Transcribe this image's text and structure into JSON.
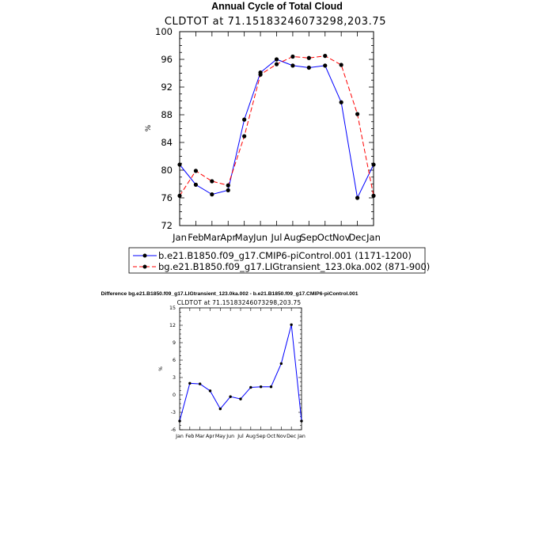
{
  "chart_data": [
    {
      "type": "line",
      "title": "Annual Cycle of Total Cloud",
      "subtitle": "CLDTOT at 71.15183246073298,203.75",
      "ylabel": "%",
      "categories": [
        "Jan",
        "Feb",
        "Mar",
        "Apr",
        "May",
        "Jun",
        "Jul",
        "Aug",
        "Sep",
        "Oct",
        "Nov",
        "Dec",
        "Jan"
      ],
      "ylim": [
        72,
        100
      ],
      "yticks": [
        72,
        76,
        80,
        84,
        88,
        92,
        96,
        100
      ],
      "ytick_labels": [
        "72",
        "76",
        "80",
        "84",
        "88",
        "92",
        "96",
        "100"
      ],
      "series": [
        {
          "name": "b.e21.B1850.f09_g17.CMIP6-piControl.001 (1171-1200)",
          "color": "#0000ff",
          "dash": "solid",
          "values": [
            80.8,
            77.9,
            76.5,
            77.1,
            87.3,
            94.1,
            96.0,
            95.1,
            94.8,
            95.1,
            89.8,
            76.0,
            80.8
          ]
        },
        {
          "name": "bg.e21.B1850.f09_g17.LIGtransient_123.0ka.002 (871-900)",
          "color": "#ff0000",
          "dash": "dashed",
          "values": [
            76.3,
            79.9,
            78.4,
            77.8,
            84.9,
            93.8,
            95.3,
            96.4,
            96.2,
            96.5,
            95.2,
            88.1,
            76.3
          ]
        }
      ]
    },
    {
      "type": "line",
      "title": "Difference bg.e21.B1850.f09_g17.LIGtransient_123.0ka.002 - b.e21.B1850.f09_g17.CMIP6-piControl.001",
      "subtitle": "CLDTOT at 71.15183246073298,203.75",
      "ylabel": "%",
      "categories": [
        "Jan",
        "Feb",
        "Mar",
        "Apr",
        "May",
        "Jun",
        "Jul",
        "Aug",
        "Sep",
        "Oct",
        "Nov",
        "Dec",
        "Jan"
      ],
      "ylim": [
        -6,
        15
      ],
      "yticks": [
        -6,
        -3,
        0,
        3,
        6,
        9,
        12,
        15
      ],
      "ytick_labels": [
        "-6",
        "-3",
        "0",
        "3",
        "6",
        "9",
        "12",
        "15"
      ],
      "series": [
        {
          "color": "#0000ff",
          "dash": "solid",
          "values": [
            -4.5,
            2.0,
            1.9,
            0.7,
            -2.4,
            -0.3,
            -0.7,
            1.3,
            1.4,
            1.4,
            5.4,
            12.1,
            -4.5
          ]
        }
      ]
    }
  ]
}
